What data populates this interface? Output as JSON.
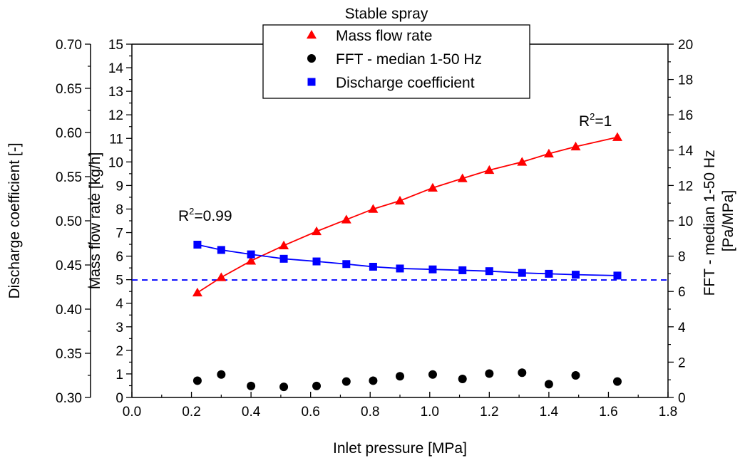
{
  "chart_data": {
    "type": "scatter",
    "title": "Stable spray",
    "xlabel": "Inlet pressure [MPa]",
    "xlim": [
      0.0,
      1.8
    ],
    "xticks": [
      "0.0",
      "0.2",
      "0.4",
      "0.6",
      "0.8",
      "1.0",
      "1.2",
      "1.4",
      "1.6",
      "1.8"
    ],
    "axes": {
      "discharge": {
        "label": "Discharge coefficient [-]",
        "range": [
          0.3,
          0.7
        ],
        "ticks": [
          "0.30",
          "0.35",
          "0.40",
          "0.45",
          "0.50",
          "0.55",
          "0.60",
          "0.65",
          "0.70"
        ]
      },
      "mass": {
        "label": "Mass flow rate [kg/h]",
        "range": [
          0,
          15
        ],
        "ticks": [
          "0",
          "1",
          "2",
          "3",
          "4",
          "5",
          "6",
          "7",
          "8",
          "9",
          "10",
          "11",
          "12",
          "13",
          "14",
          "15"
        ]
      },
      "fft": {
        "label_line1": "FFT - median 1-50 Hz",
        "label_line2": "[Pa/MPa]",
        "range": [
          0,
          20
        ],
        "ticks": [
          "0",
          "2",
          "4",
          "6",
          "8",
          "10",
          "12",
          "14",
          "16",
          "18",
          "20"
        ]
      }
    },
    "series": [
      {
        "name": "Mass flow rate",
        "axis": "mass",
        "marker": "triangle",
        "color": "#ff0000",
        "fit_line": true,
        "points": [
          [
            0.22,
            4.45
          ],
          [
            0.3,
            5.1
          ],
          [
            0.4,
            5.8
          ],
          [
            0.51,
            6.45
          ],
          [
            0.62,
            7.05
          ],
          [
            0.72,
            7.55
          ],
          [
            0.81,
            8.0
          ],
          [
            0.9,
            8.35
          ],
          [
            1.01,
            8.9
          ],
          [
            1.11,
            9.3
          ],
          [
            1.2,
            9.65
          ],
          [
            1.31,
            10.0
          ],
          [
            1.4,
            10.35
          ],
          [
            1.49,
            10.65
          ],
          [
            1.63,
            11.05
          ]
        ]
      },
      {
        "name": "FFT - median 1-50 Hz",
        "axis": "fft",
        "marker": "circle",
        "color": "#000000",
        "fit_line": false,
        "points": [
          [
            0.22,
            0.95
          ],
          [
            0.3,
            1.3
          ],
          [
            0.4,
            0.65
          ],
          [
            0.51,
            0.6
          ],
          [
            0.62,
            0.65
          ],
          [
            0.72,
            0.9
          ],
          [
            0.81,
            0.95
          ],
          [
            0.9,
            1.2
          ],
          [
            1.01,
            1.3
          ],
          [
            1.11,
            1.05
          ],
          [
            1.2,
            1.35
          ],
          [
            1.31,
            1.4
          ],
          [
            1.4,
            0.75
          ],
          [
            1.49,
            1.25
          ],
          [
            1.63,
            0.9
          ]
        ]
      },
      {
        "name": "Discharge coefficient",
        "axis": "discharge",
        "marker": "square",
        "color": "#0000ff",
        "fit_line": true,
        "points": [
          [
            0.22,
            0.473
          ],
          [
            0.3,
            0.467
          ],
          [
            0.4,
            0.462
          ],
          [
            0.51,
            0.457
          ],
          [
            0.62,
            0.454
          ],
          [
            0.72,
            0.451
          ],
          [
            0.81,
            0.448
          ],
          [
            0.9,
            0.446
          ],
          [
            1.01,
            0.445
          ],
          [
            1.11,
            0.444
          ],
          [
            1.2,
            0.443
          ],
          [
            1.31,
            0.441
          ],
          [
            1.4,
            0.44
          ],
          [
            1.49,
            0.439
          ],
          [
            1.63,
            0.438
          ]
        ]
      }
    ],
    "reference_line": {
      "axis": "discharge",
      "value": 0.433,
      "color": "#0000ff",
      "style": "dashed"
    },
    "annotations": [
      {
        "text": "R",
        "sup": "2",
        "rest": "=0.99",
        "near_series": "Discharge coefficient"
      },
      {
        "text": "R",
        "sup": "2",
        "rest": "=1",
        "near_series": "Mass flow rate"
      }
    ],
    "legend_position": "top-center",
    "grid": false
  }
}
